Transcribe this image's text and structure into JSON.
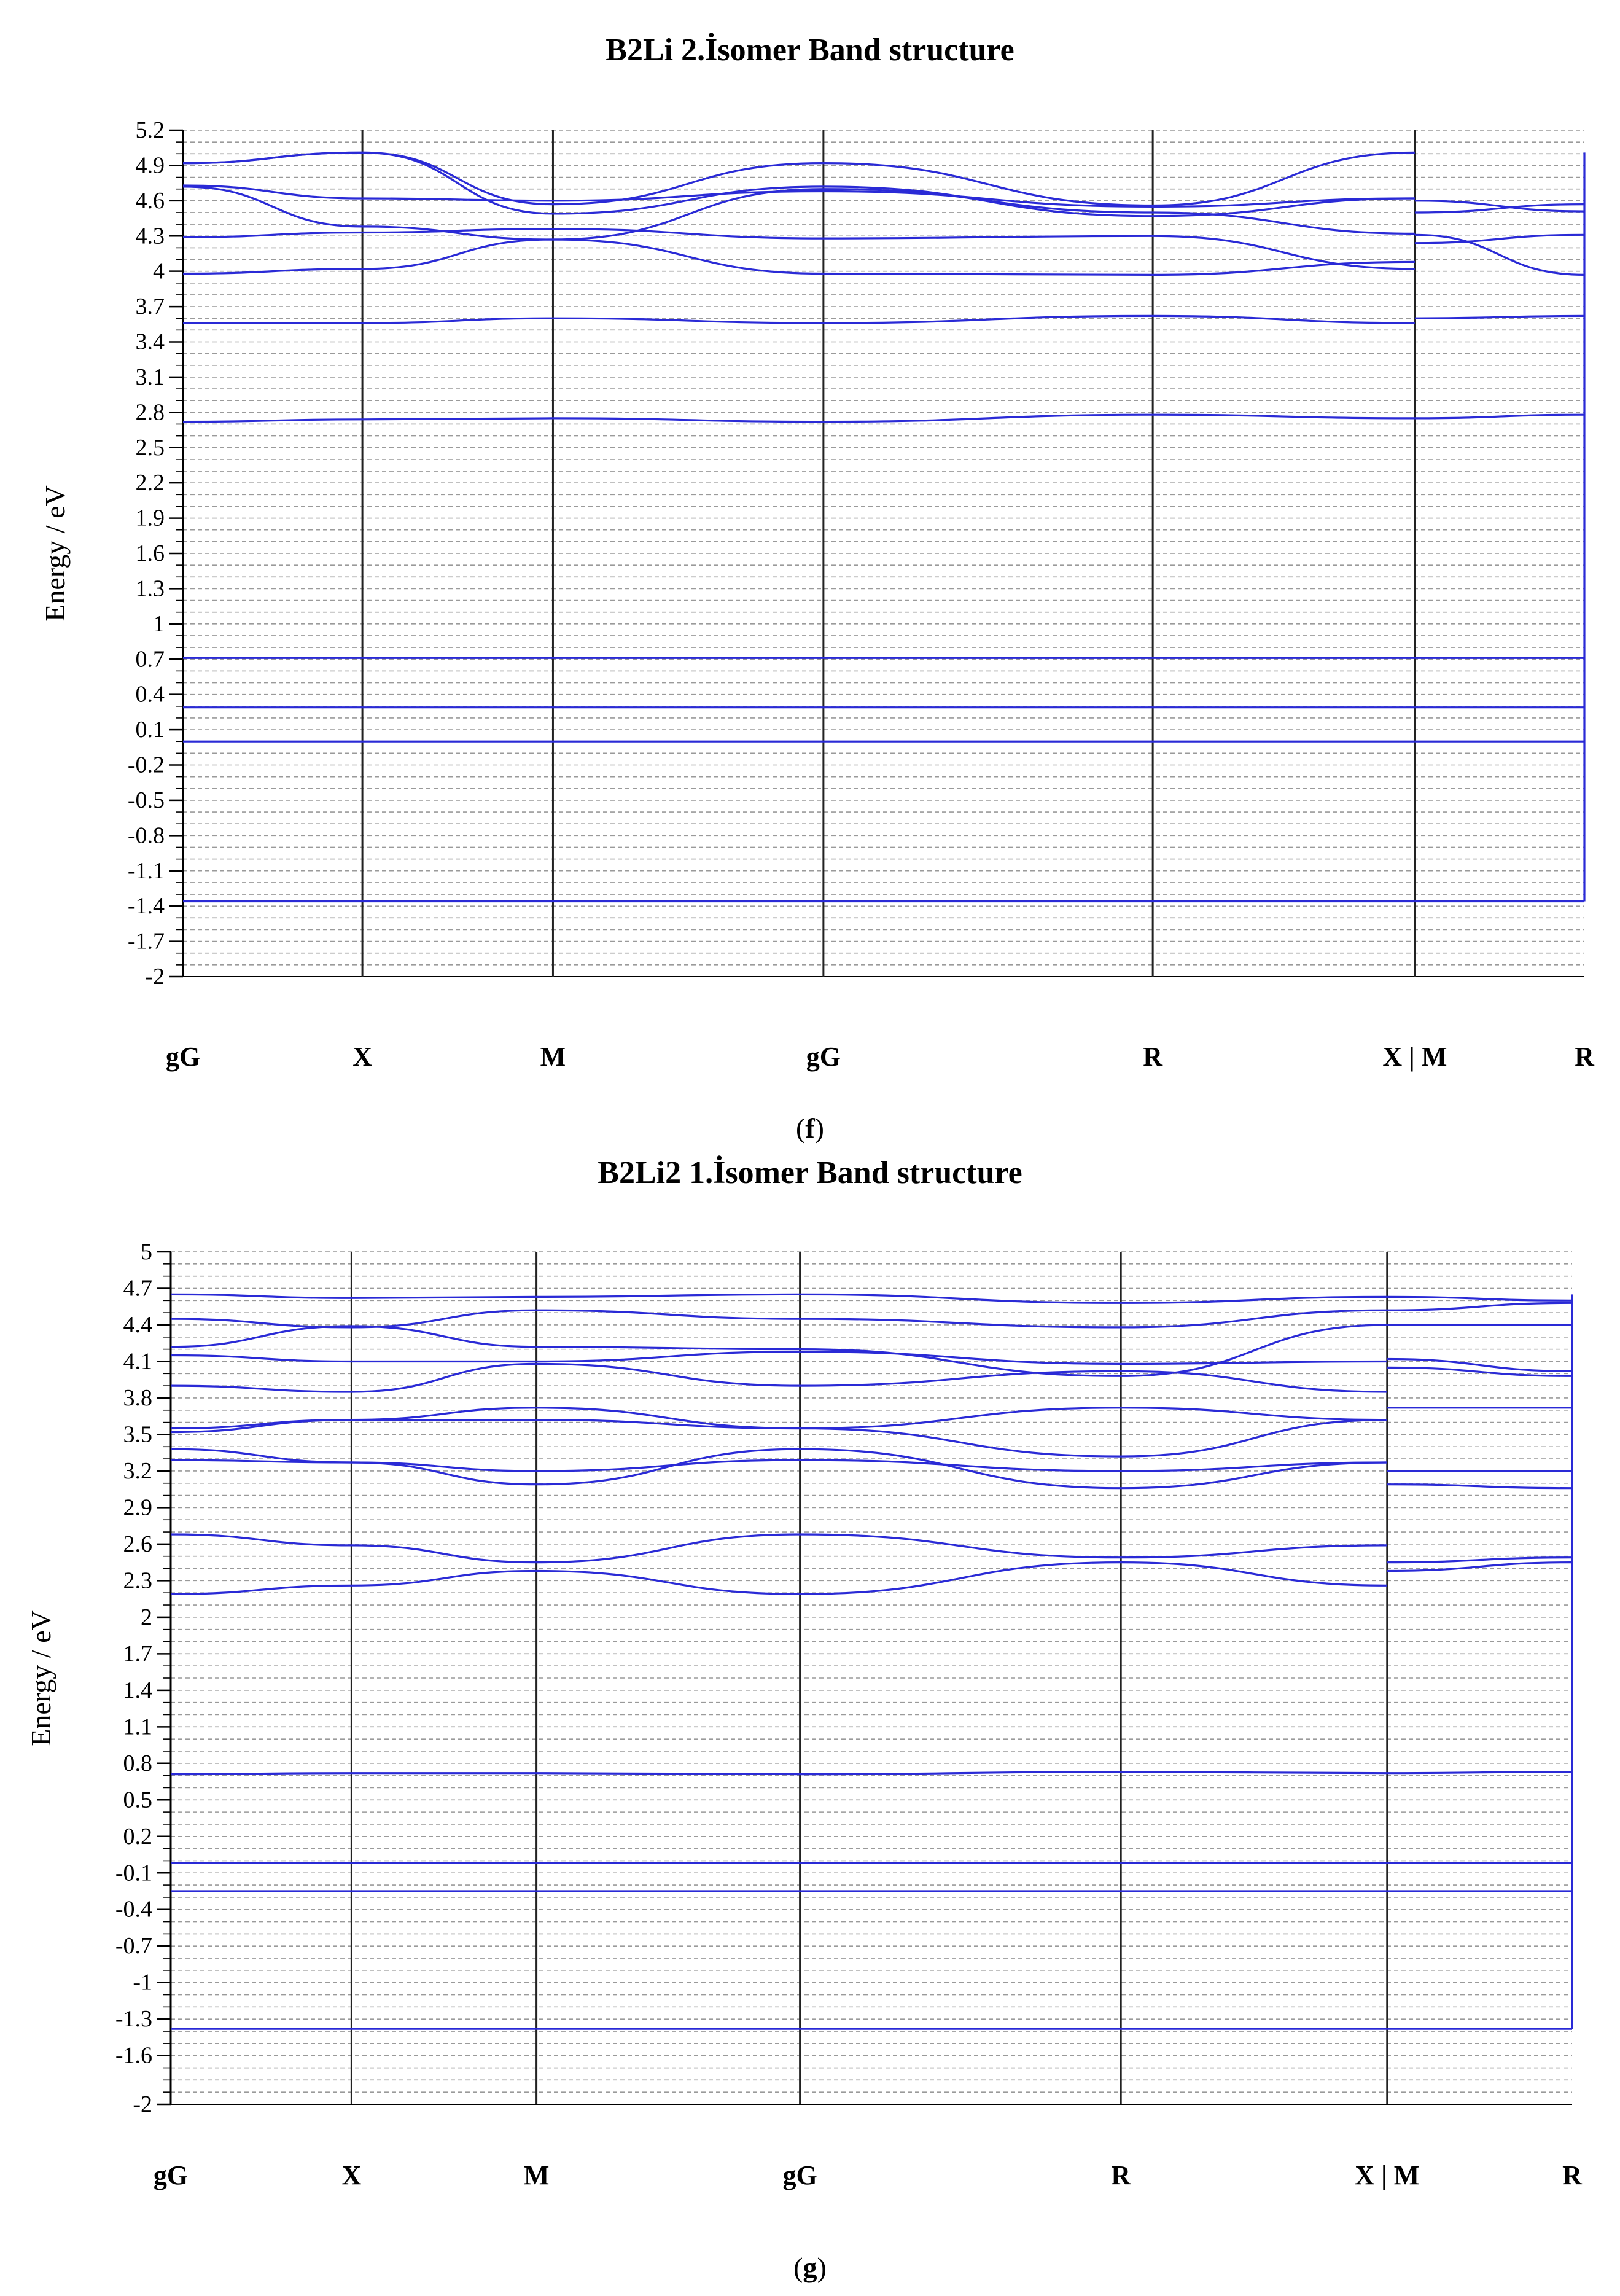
{
  "chart_data": [
    {
      "type": "line",
      "title": "B2Li 2.İsomer Band structure",
      "ylabel": "Energy / eV",
      "xlabel": "",
      "panel_label": "f",
      "ylim": [
        -2,
        5.2
      ],
      "yticks": [
        "5.2",
        "4.9",
        "4.6",
        "4.3",
        "4",
        "3.7",
        "3.4",
        "3.1",
        "2.8",
        "2.5",
        "2.2",
        "1.9",
        "1.6",
        "1.3",
        "1",
        "0.7",
        "0.4",
        "0.1",
        "-0.2",
        "-0.5",
        "-0.8",
        "-1.1",
        "-1.4",
        "-1.7",
        "-2"
      ],
      "k_labels": [
        "gG",
        "X",
        "M",
        "gG",
        "R",
        "X | M",
        "R"
      ],
      "k_positions": [
        0,
        0.128,
        0.264,
        0.457,
        0.692,
        0.879,
        1.0
      ],
      "grid": true,
      "color": "#2a2ad6",
      "series": [
        {
          "x": [
            0,
            0.128,
            0.264,
            0.457,
            0.692,
            0.879
          ],
          "values": [
            -1.36,
            -1.36,
            -1.36,
            -1.36,
            -1.36,
            -1.36
          ]
        },
        {
          "x": [
            0.879,
            1.0
          ],
          "values": [
            -1.36,
            -1.36
          ]
        },
        {
          "x": [
            0,
            0.128,
            0.264,
            0.457,
            0.692,
            0.879
          ],
          "values": [
            0.0,
            0.0,
            0.0,
            0.0,
            0.0,
            0.0
          ]
        },
        {
          "x": [
            0.879,
            1.0
          ],
          "values": [
            0.0,
            0.0
          ]
        },
        {
          "x": [
            0,
            0.128,
            0.264,
            0.457,
            0.692,
            0.879
          ],
          "values": [
            0.29,
            0.29,
            0.29,
            0.29,
            0.29,
            0.29
          ]
        },
        {
          "x": [
            0.879,
            1.0
          ],
          "values": [
            0.29,
            0.29
          ]
        },
        {
          "x": [
            0,
            0.128,
            0.264,
            0.457,
            0.692,
            0.879
          ],
          "values": [
            0.71,
            0.71,
            0.71,
            0.71,
            0.71,
            0.71
          ]
        },
        {
          "x": [
            0.879,
            1.0
          ],
          "values": [
            0.71,
            0.71
          ]
        },
        {
          "x": [
            0,
            0.128,
            0.264,
            0.457,
            0.692,
            0.879
          ],
          "values": [
            2.72,
            2.74,
            2.75,
            2.72,
            2.78,
            2.75
          ]
        },
        {
          "x": [
            0.879,
            1.0
          ],
          "values": [
            2.75,
            2.78
          ]
        },
        {
          "x": [
            0,
            0.128,
            0.264,
            0.457,
            0.692,
            0.879
          ],
          "values": [
            3.56,
            3.56,
            3.6,
            3.56,
            3.62,
            3.56
          ]
        },
        {
          "x": [
            0.879,
            1.0
          ],
          "values": [
            3.6,
            3.62
          ]
        },
        {
          "x": [
            0,
            0.128,
            0.264,
            0.457,
            0.692,
            0.879
          ],
          "values": [
            3.98,
            4.02,
            4.27,
            4.7,
            4.5,
            4.32
          ]
        },
        {
          "x": [
            0,
            0.128,
            0.264,
            0.457,
            0.692,
            0.879
          ],
          "values": [
            4.29,
            4.33,
            4.36,
            4.28,
            4.3,
            4.02
          ]
        },
        {
          "x": [
            0,
            0.128,
            0.264,
            0.457,
            0.692,
            0.879
          ],
          "values": [
            4.73,
            4.62,
            4.6,
            4.68,
            4.55,
            4.62
          ]
        },
        {
          "x": [
            0,
            0.128,
            0.264,
            0.457,
            0.692,
            0.879
          ],
          "values": [
            4.72,
            4.38,
            4.27,
            3.98,
            3.97,
            4.08
          ]
        },
        {
          "x": [
            0,
            0.128,
            0.264,
            0.457,
            0.692,
            0.879
          ],
          "values": [
            4.92,
            5.01,
            4.49,
            4.72,
            4.47,
            4.62
          ]
        },
        {
          "x": [
            0,
            0.128,
            0.264,
            0.457,
            0.692,
            0.879
          ],
          "values": [
            4.92,
            5.01,
            4.57,
            4.92,
            4.56,
            5.01
          ]
        },
        {
          "x": [
            0.879,
            1.0
          ],
          "values": [
            4.31,
            3.97
          ]
        },
        {
          "x": [
            0.879,
            1.0
          ],
          "values": [
            4.24,
            4.31
          ]
        },
        {
          "x": [
            0.879,
            1.0
          ],
          "values": [
            4.5,
            4.57
          ]
        },
        {
          "x": [
            0.879,
            1.0
          ],
          "values": [
            4.6,
            4.51
          ]
        }
      ]
    },
    {
      "type": "line",
      "title": "B2Li2 1.İsomer Band structure",
      "ylabel": "Energy / eV",
      "xlabel": "",
      "panel_label": "g",
      "ylim": [
        -2,
        5
      ],
      "yticks": [
        "5",
        "4.7",
        "4.4",
        "4.1",
        "3.8",
        "3.5",
        "3.2",
        "2.9",
        "2.6",
        "2.3",
        "2",
        "1.7",
        "1.4",
        "1.1",
        "0.8",
        "0.5",
        "0.2",
        "-0.1",
        "-0.4",
        "-0.7",
        "-1",
        "-1.3",
        "-1.6",
        "-2"
      ],
      "k_labels": [
        "gG",
        "X",
        "M",
        "gG",
        "R",
        "X | M",
        "R"
      ],
      "k_positions": [
        0,
        0.129,
        0.261,
        0.449,
        0.678,
        0.868,
        1.0
      ],
      "grid": true,
      "color": "#2a2ad6",
      "series": [
        {
          "x": [
            0,
            0.129,
            0.261,
            0.449,
            0.678,
            0.868
          ],
          "values": [
            -1.38,
            -1.38,
            -1.38,
            -1.38,
            -1.38,
            -1.38
          ]
        },
        {
          "x": [
            0.868,
            1.0
          ],
          "values": [
            -1.38,
            -1.38
          ]
        },
        {
          "x": [
            0,
            0.129,
            0.261,
            0.449,
            0.678,
            0.868
          ],
          "values": [
            -0.02,
            -0.02,
            -0.02,
            -0.02,
            -0.02,
            -0.02
          ]
        },
        {
          "x": [
            0.868,
            1.0
          ],
          "values": [
            -0.02,
            -0.02
          ]
        },
        {
          "x": [
            0,
            0.129,
            0.261,
            0.449,
            0.678,
            0.868
          ],
          "values": [
            -0.25,
            -0.25,
            -0.25,
            -0.25,
            -0.25,
            -0.25
          ]
        },
        {
          "x": [
            0.868,
            1.0
          ],
          "values": [
            -0.25,
            -0.25
          ]
        },
        {
          "x": [
            0,
            0.129,
            0.261,
            0.449,
            0.678,
            0.868
          ],
          "values": [
            0.71,
            0.72,
            0.72,
            0.71,
            0.73,
            0.72
          ]
        },
        {
          "x": [
            0.868,
            1.0
          ],
          "values": [
            0.72,
            0.73
          ]
        },
        {
          "x": [
            0,
            0.129,
            0.261,
            0.449,
            0.678,
            0.868
          ],
          "values": [
            2.19,
            2.26,
            2.38,
            2.19,
            2.45,
            2.26
          ]
        },
        {
          "x": [
            0,
            0.129,
            0.261,
            0.449,
            0.678,
            0.868
          ],
          "values": [
            2.68,
            2.59,
            2.45,
            2.68,
            2.49,
            2.59
          ]
        },
        {
          "x": [
            0.868,
            1.0
          ],
          "values": [
            2.38,
            2.45
          ]
        },
        {
          "x": [
            0.868,
            1.0
          ],
          "values": [
            2.45,
            2.49
          ]
        },
        {
          "x": [
            0,
            0.129,
            0.261,
            0.449,
            0.678,
            0.868
          ],
          "values": [
            3.38,
            3.27,
            3.09,
            3.38,
            3.06,
            3.27
          ]
        },
        {
          "x": [
            0,
            0.129,
            0.261,
            0.449,
            0.678,
            0.868
          ],
          "values": [
            3.29,
            3.27,
            3.2,
            3.29,
            3.2,
            3.27
          ]
        },
        {
          "x": [
            0,
            0.129,
            0.261,
            0.449,
            0.678,
            0.868
          ],
          "values": [
            3.52,
            3.62,
            3.62,
            3.55,
            3.32,
            3.62
          ]
        },
        {
          "x": [
            0,
            0.129,
            0.261,
            0.449,
            0.678,
            0.868
          ],
          "values": [
            3.55,
            3.62,
            3.72,
            3.55,
            3.72,
            3.62
          ]
        },
        {
          "x": [
            0.868,
            1.0
          ],
          "values": [
            3.09,
            3.06
          ]
        },
        {
          "x": [
            0.868,
            1.0
          ],
          "values": [
            3.2,
            3.2
          ]
        },
        {
          "x": [
            0.868,
            1.0
          ],
          "values": [
            3.72,
            3.72
          ]
        },
        {
          "x": [
            0,
            0.129,
            0.261,
            0.449,
            0.678,
            0.868
          ],
          "values": [
            3.9,
            3.85,
            4.08,
            3.9,
            4.02,
            3.85
          ]
        },
        {
          "x": [
            0,
            0.129,
            0.261,
            0.449,
            0.678,
            0.868
          ],
          "values": [
            4.15,
            4.1,
            4.1,
            4.18,
            4.08,
            4.1
          ]
        },
        {
          "x": [
            0,
            0.129,
            0.261,
            0.449,
            0.678,
            0.868
          ],
          "values": [
            4.22,
            4.39,
            4.22,
            4.2,
            3.98,
            4.4
          ]
        },
        {
          "x": [
            0,
            0.129,
            0.261,
            0.449,
            0.678,
            0.868
          ],
          "values": [
            4.45,
            4.38,
            4.52,
            4.45,
            4.38,
            4.52
          ]
        },
        {
          "x": [
            0,
            0.129,
            0.261,
            0.449,
            0.678,
            0.868
          ],
          "values": [
            4.65,
            4.62,
            4.63,
            4.65,
            4.58,
            4.63
          ]
        },
        {
          "x": [
            0.868,
            1.0
          ],
          "values": [
            4.05,
            3.98
          ]
        },
        {
          "x": [
            0.868,
            1.0
          ],
          "values": [
            4.12,
            4.02
          ]
        },
        {
          "x": [
            0.868,
            1.0
          ],
          "values": [
            4.4,
            4.4
          ]
        },
        {
          "x": [
            0.868,
            1.0
          ],
          "values": [
            4.52,
            4.58
          ]
        },
        {
          "x": [
            0.868,
            1.0
          ],
          "values": [
            4.63,
            4.6
          ]
        }
      ]
    }
  ]
}
